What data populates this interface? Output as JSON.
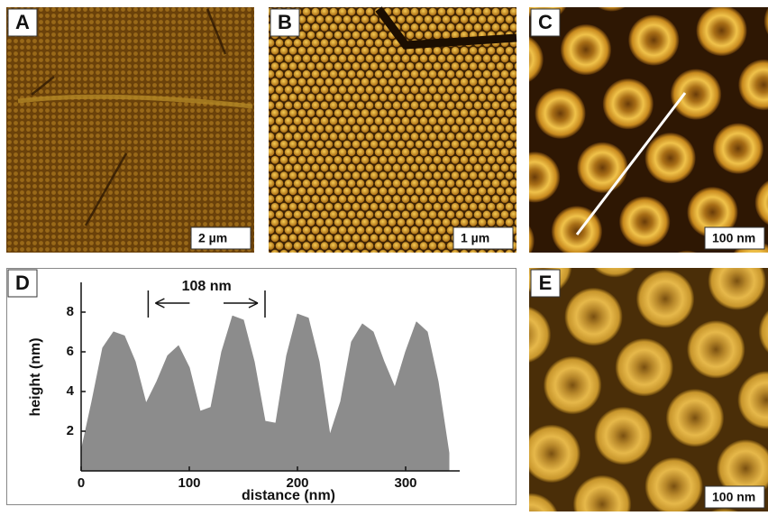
{
  "panels": [
    {
      "label": "A",
      "scale_bar": "2 µm"
    },
    {
      "label": "B",
      "scale_bar": "1 µm"
    },
    {
      "label": "C",
      "scale_bar": "100 nm"
    },
    {
      "label": "D"
    },
    {
      "label": "E",
      "scale_bar": "100 nm"
    }
  ],
  "chart_data": {
    "type": "area",
    "x_label": "distance (nm)",
    "y_label": "height (nm)",
    "annotation": "108 nm",
    "annotation_markers": [
      62,
      170
    ],
    "x": [
      0,
      10,
      20,
      30,
      40,
      50,
      60,
      70,
      80,
      90,
      100,
      110,
      120,
      130,
      140,
      150,
      160,
      170,
      180,
      190,
      200,
      210,
      220,
      230,
      240,
      250,
      260,
      270,
      280,
      290,
      300,
      310,
      320,
      330,
      340
    ],
    "values": [
      1.0,
      3.5,
      6.2,
      7.0,
      6.8,
      5.5,
      3.4,
      4.5,
      5.8,
      6.3,
      5.2,
      3.0,
      3.2,
      6.0,
      7.8,
      7.6,
      5.5,
      2.5,
      2.4,
      5.8,
      7.9,
      7.7,
      5.5,
      1.8,
      3.5,
      6.5,
      7.4,
      7.0,
      5.5,
      4.2,
      6.0,
      7.5,
      7.0,
      4.5,
      0.9
    ],
    "color": "#8c8c8c",
    "xlim": [
      0,
      350
    ],
    "xticks": [
      0,
      100,
      200,
      300
    ],
    "ylim": [
      0,
      9.5
    ],
    "yticks": [
      2,
      4,
      6,
      8
    ]
  }
}
